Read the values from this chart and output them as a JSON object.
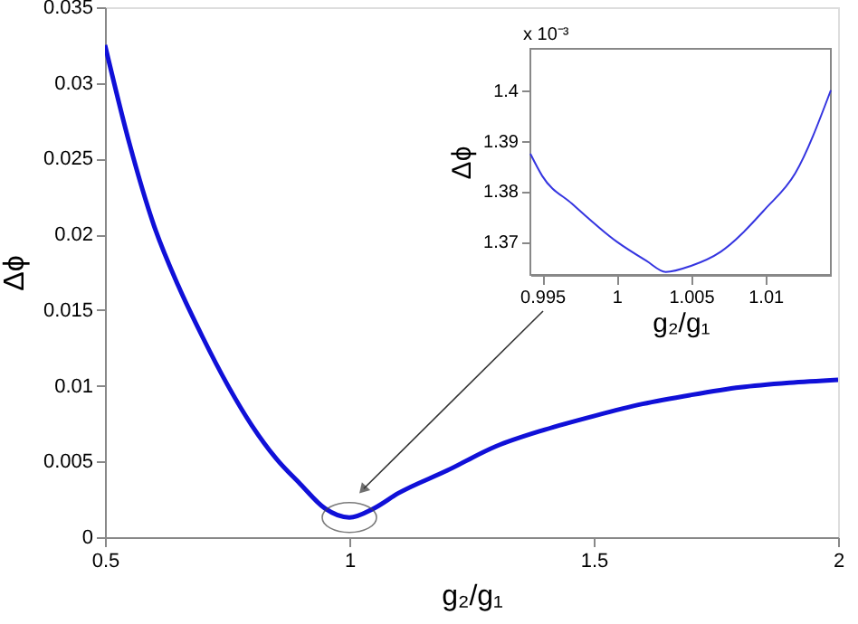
{
  "chart_data": [
    {
      "type": "line",
      "xlabel": "g₂/g₁",
      "ylabel": "Δϕ",
      "x": [
        0.5,
        0.55,
        0.6,
        0.65,
        0.7,
        0.75,
        0.8,
        0.85,
        0.9,
        0.95,
        1,
        1.05,
        1.1,
        1.2,
        1.3,
        1.4,
        1.5,
        1.6,
        1.7,
        1.8,
        1.9,
        2
      ],
      "series": [
        {
          "color": "#1010d8",
          "values": [
            0.0325,
            0.026,
            0.0206,
            0.0166,
            0.0132,
            0.0101,
            0.0074,
            0.0052,
            0.0035,
            0.0019,
            0.0013,
            0.0019,
            0.0029,
            0.0044,
            0.006,
            0.0071,
            0.008,
            0.0088,
            0.0094,
            0.0099,
            0.0102,
            0.0104
          ]
        }
      ],
      "xlim": [
        0.5,
        2
      ],
      "xticks": [
        0.5,
        1,
        1.5,
        2
      ],
      "ylim": [
        0,
        0.035
      ],
      "yticks": [
        0,
        0.005,
        0.01,
        0.015,
        0.02,
        0.025,
        0.03,
        0.035
      ],
      "grid": false
    },
    {
      "type": "line",
      "xlabel": "g₂/g₁",
      "ylabel": "Δϕ",
      "annotations": [
        "x 10⁻³"
      ],
      "x": [
        0.9942,
        0.995,
        0.997,
        1,
        1.002,
        1.0033,
        1.005,
        1.007,
        1.01,
        1.012,
        1.0144
      ],
      "series": [
        {
          "color": "#3535e0",
          "values": [
            1.3874,
            1.383,
            1.3775,
            1.37,
            1.3662,
            1.364,
            1.3652,
            1.368,
            1.3765,
            1.3835,
            1.4
          ]
        }
      ],
      "xlim": [
        0.9942,
        1.0144
      ],
      "xticks": [
        0.995,
        1,
        1.005,
        1.01
      ],
      "ylim": [
        1.3634,
        1.4082
      ],
      "yticks": [
        1.37,
        1.38,
        1.39,
        {
          "value": 1.4,
          "label": "1.4"
        }
      ],
      "grid": false
    }
  ]
}
